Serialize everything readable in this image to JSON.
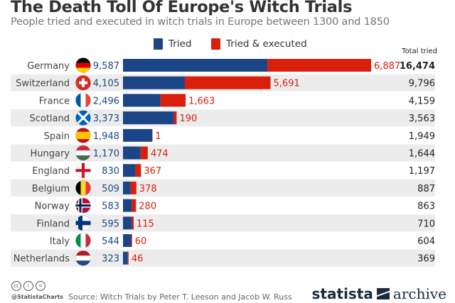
{
  "title": "The Death Toll Of Europe's Witch Trials",
  "subtitle": "People tried and executed in witch trials in Europe between 1300 and 1850",
  "colors": {
    "tried": "#1b4586",
    "executed": "#d91e0b",
    "band": "#ececec"
  },
  "chart_data": {
    "type": "bar",
    "stacked": true,
    "orientation": "horizontal",
    "categories": [
      "Germany",
      "Switzerland",
      "France",
      "Scotland",
      "Spain",
      "Hungary",
      "England",
      "Belgium",
      "Norway",
      "Finland",
      "Italy",
      "Netherlands"
    ],
    "series": [
      {
        "name": "Tried",
        "values": [
          9587,
          4105,
          2496,
          3373,
          1948,
          1170,
          830,
          509,
          583,
          595,
          544,
          323
        ]
      },
      {
        "name": "Tried & executed",
        "values": [
          6887,
          5691,
          1663,
          190,
          1,
          474,
          367,
          378,
          280,
          115,
          60,
          46
        ]
      }
    ],
    "total_header": "Total tried",
    "totals": [
      "16,474",
      "9,796",
      "4,159",
      "3,563",
      "1,949",
      "1,644",
      "1,197",
      "887",
      "863",
      "710",
      "604",
      "369"
    ],
    "legend_position": "top",
    "grid": false
  },
  "footer": {
    "handle": "@StatistaCharts",
    "source": "Source: Witch Trials by Peter T. Leeson and Jacob W. Russ",
    "logo": "statista",
    "logo_suffix": "archive"
  }
}
